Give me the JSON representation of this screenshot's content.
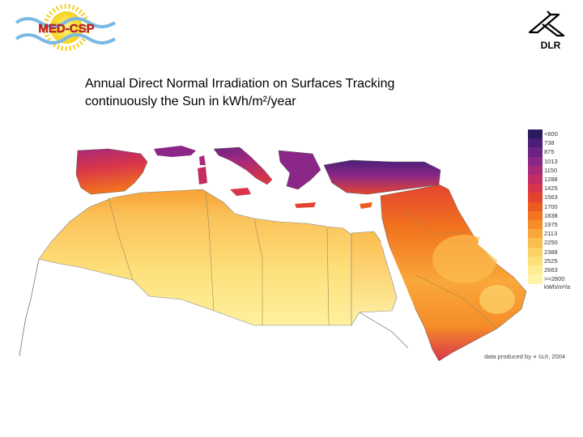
{
  "header": {
    "left_logo": {
      "icon": "med-csp-logo",
      "text": "MED-CSP"
    },
    "right_logo": {
      "icon": "dlr-logo",
      "text": "DLR"
    }
  },
  "title": {
    "line1": "Annual Direct Normal Irradiation on Surfaces Tracking",
    "line2": "continuously the Sun in kWh/m²/year"
  },
  "legend": {
    "items": [
      {
        "label": "<600",
        "color": "#2a1a5e"
      },
      {
        "label": "738",
        "color": "#4b1f78"
      },
      {
        "label": "875",
        "color": "#6b2386"
      },
      {
        "label": "1013",
        "color": "#8a2787"
      },
      {
        "label": "1150",
        "color": "#a82a7a"
      },
      {
        "label": "1288",
        "color": "#c42d64"
      },
      {
        "label": "1425",
        "color": "#d8344a"
      },
      {
        "label": "1563",
        "color": "#e4442f"
      },
      {
        "label": "1700",
        "color": "#ec5a1f"
      },
      {
        "label": "1838",
        "color": "#f2741e"
      },
      {
        "label": "1975",
        "color": "#f68d28"
      },
      {
        "label": "2113",
        "color": "#f9a73a"
      },
      {
        "label": "2250",
        "color": "#fbbd4e"
      },
      {
        "label": "2388",
        "color": "#fcd163"
      },
      {
        "label": "2525",
        "color": "#fde07a"
      },
      {
        "label": "2663",
        "color": "#feec92"
      },
      {
        "label": ">=2800",
        "color": "#fff3a8"
      }
    ],
    "unit": "kWh/m²/a"
  },
  "credit": {
    "text": "data produced by",
    "org": "DLR",
    "year": ", 2004"
  }
}
